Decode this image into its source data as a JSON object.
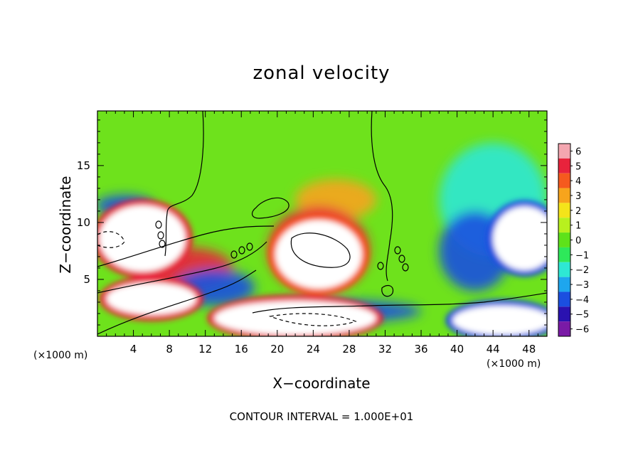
{
  "chart_data": {
    "type": "heatmap",
    "title": "zonal velocity",
    "xlabel": "X−coordinate",
    "ylabel": "Z−coordinate",
    "x_unit_label": "(×1000 m)",
    "x_unit_label_right": "(×1000 m)",
    "footer": "CONTOUR INTERVAL = 1.000E+01",
    "xlim": [
      0,
      50
    ],
    "ylim": [
      0,
      19.8
    ],
    "x_ticks": [
      "4",
      "8",
      "12",
      "16",
      "20",
      "24",
      "28",
      "32",
      "36",
      "40",
      "44",
      "48"
    ],
    "x_tick_values": [
      4,
      8,
      12,
      16,
      20,
      24,
      28,
      32,
      36,
      40,
      44,
      48
    ],
    "y_ticks": [
      "5",
      "10",
      "15"
    ],
    "y_tick_values": [
      5,
      10,
      15
    ],
    "colorbar": {
      "labels": [
        "6",
        "5",
        "4",
        "3",
        "2",
        "1",
        "0",
        "−1",
        "−2",
        "−3",
        "−4",
        "−5",
        "−6"
      ],
      "values": [
        6,
        5,
        4,
        3,
        2,
        1,
        0,
        -1,
        -2,
        -3,
        -4,
        -5,
        -6
      ],
      "colors": [
        "#f4a6b0",
        "#e8233c",
        "#f55a1e",
        "#f7a41c",
        "#f4e41a",
        "#b8f01e",
        "#5ee21a",
        "#2ee85a",
        "#2ee8d4",
        "#1ea6ee",
        "#1b4fe0",
        "#2a12b0",
        "#7a1aa6"
      ]
    },
    "regions": [
      {
        "kind": "white",
        "cx": 5.0,
        "cy": 8.6,
        "rx": 4.8,
        "ry": 2.9
      },
      {
        "kind": "white",
        "cx": 24.6,
        "cy": 7.2,
        "rx": 4.8,
        "ry": 3.0
      },
      {
        "kind": "white",
        "cx": 47.5,
        "cy": 8.6,
        "rx": 3.5,
        "ry": 2.8
      },
      {
        "kind": "white",
        "cx": 22.0,
        "cy": 1.6,
        "rx": 9.0,
        "ry": 1.5
      },
      {
        "kind": "white",
        "cx": 6.0,
        "cy": 3.3,
        "rx": 5.0,
        "ry": 1.4
      },
      {
        "kind": "white",
        "cx": 45.0,
        "cy": 1.4,
        "rx": 5.5,
        "ry": 1.3
      },
      {
        "kind": "blue",
        "cx": 3.0,
        "cy": 11.5,
        "rx": 3.2,
        "ry": 0.9
      },
      {
        "kind": "blue",
        "cx": 13.0,
        "cy": 4.3,
        "rx": 4.5,
        "ry": 1.6
      },
      {
        "kind": "blue",
        "cx": 42.0,
        "cy": 7.5,
        "rx": 4.0,
        "ry": 3.5
      },
      {
        "kind": "blue",
        "cx": 26.0,
        "cy": 2.2,
        "rx": 10.0,
        "ry": 1.0
      },
      {
        "kind": "red",
        "cx": 24.6,
        "cy": 7.6,
        "rx": 5.6,
        "ry": 3.8
      },
      {
        "kind": "red",
        "cx": 10.0,
        "cy": 6.0,
        "rx": 5.0,
        "ry": 1.8
      },
      {
        "kind": "orange",
        "cx": 26.5,
        "cy": 12.0,
        "rx": 4.5,
        "ry": 1.8
      },
      {
        "kind": "cyan",
        "cx": 44.0,
        "cy": 12.0,
        "rx": 6.0,
        "ry": 5.0
      }
    ]
  }
}
